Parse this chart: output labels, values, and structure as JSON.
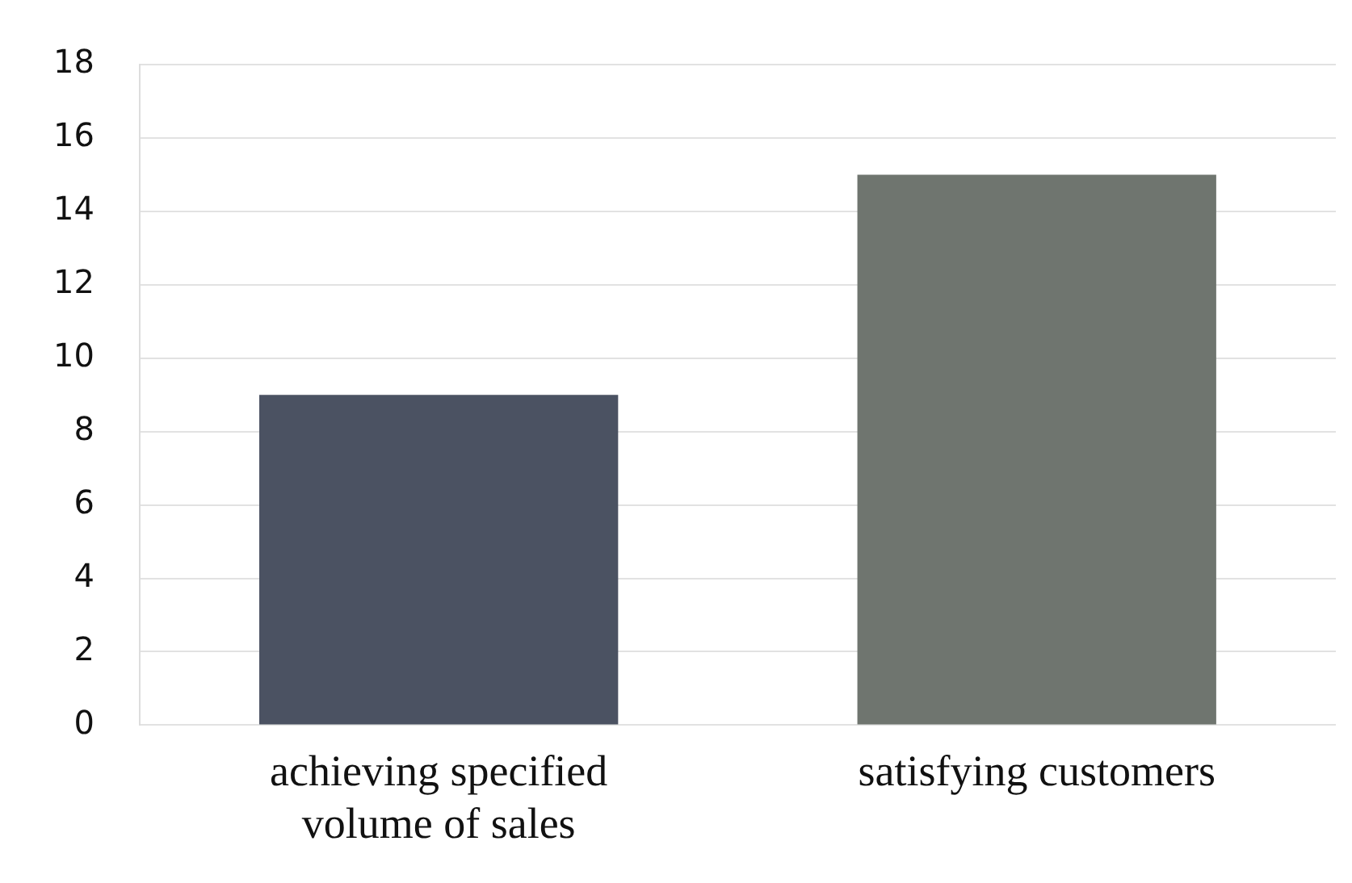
{
  "chart_data": {
    "type": "bar",
    "categories": [
      "achieving specified volume of sales",
      "satisfying customers"
    ],
    "values": [
      9,
      15
    ],
    "colors": [
      "#4b5262",
      "#6f756f"
    ],
    "ylim": [
      0,
      18
    ],
    "yticks": [
      0,
      2,
      4,
      6,
      8,
      10,
      12,
      14,
      16,
      18
    ],
    "grid": "y",
    "legend": false
  }
}
